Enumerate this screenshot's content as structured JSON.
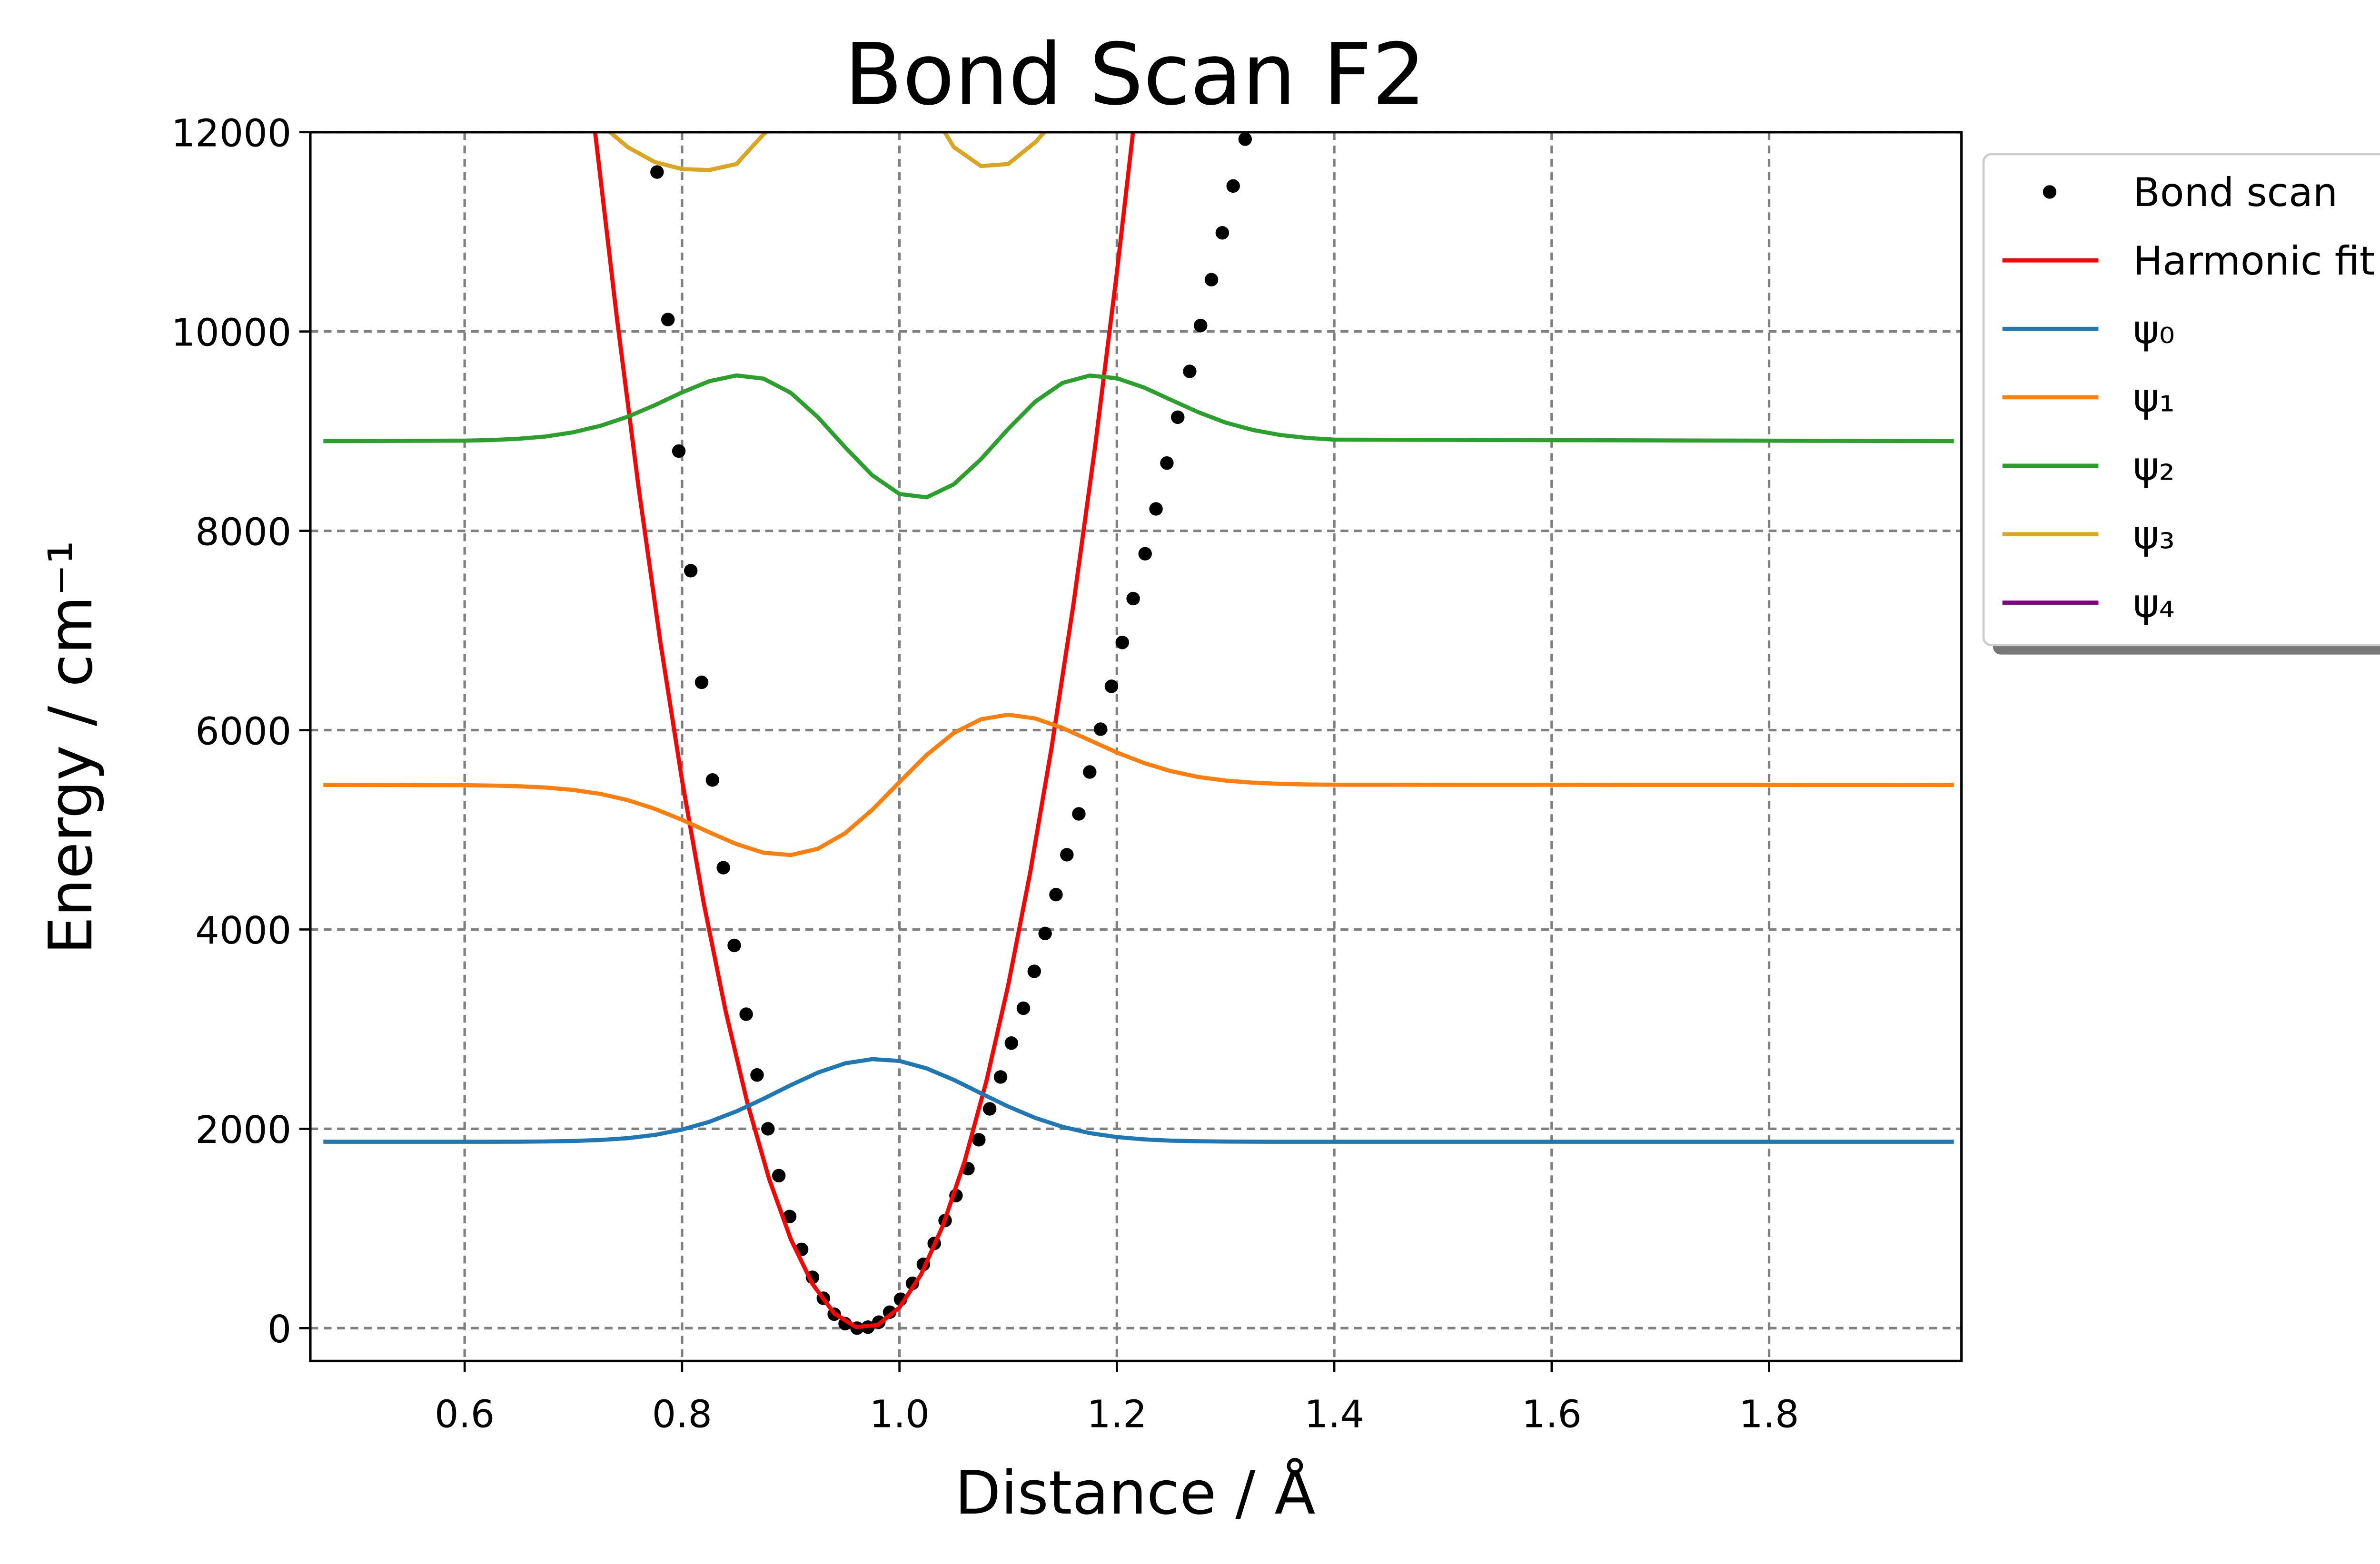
{
  "chart_data": {
    "type": "line",
    "title": "Bond Scan F2",
    "x_label": "Distance / Å",
    "y_label": "Energy / cm⁻¹",
    "xlim": [
      0.458,
      1.977
    ],
    "ylim": [
      -330,
      12000
    ],
    "xticks": [
      0.6,
      0.8,
      {
        "value": 1,
        "label": "1.0"
      },
      1.2,
      1.4,
      1.6,
      1.8
    ],
    "yticks": [
      0,
      2000,
      4000,
      6000,
      8000,
      10000,
      12000
    ],
    "grid": true,
    "legend": "outside-upper-right",
    "series": [
      {
        "name": "Bond scan",
        "type": "scatter",
        "color": "#000000",
        "x": [
          0.777,
          0.787,
          0.797,
          0.808,
          0.818,
          0.828,
          0.838,
          0.848,
          0.859,
          0.869,
          0.879,
          0.889,
          0.899,
          0.91,
          0.92,
          0.93,
          0.94,
          0.95,
          0.961,
          0.971,
          0.981,
          0.991,
          1.001,
          1.012,
          1.022,
          1.032,
          1.042,
          1.052,
          1.063,
          1.073,
          1.083,
          1.093,
          1.103,
          1.114,
          1.124,
          1.134,
          1.144,
          1.154,
          1.165,
          1.175,
          1.185,
          1.195,
          1.205,
          1.215,
          1.226,
          1.236,
          1.246,
          1.256,
          1.267,
          1.277,
          1.287,
          1.297,
          1.307,
          1.318
        ],
        "values": [
          11600,
          10120,
          8800,
          7600,
          6480,
          5500,
          4620,
          3840,
          3150,
          2540,
          2000,
          1530,
          1120,
          790,
          510,
          300,
          140,
          45,
          0,
          10,
          60,
          160,
          290,
          450,
          640,
          850,
          1080,
          1330,
          1600,
          1890,
          2200,
          2520,
          2860,
          3210,
          3580,
          3960,
          4350,
          4750,
          5160,
          5580,
          6010,
          6440,
          6880,
          7320,
          7770,
          8220,
          8680,
          9140,
          9600,
          10060,
          10520,
          10990,
          11460,
          11930
        ]
      },
      {
        "name": "Harmonic fit",
        "type": "line",
        "color": "#ff0000",
        "x": [
          0.7,
          0.72,
          0.74,
          0.76,
          0.78,
          0.8,
          0.82,
          0.84,
          0.86,
          0.88,
          0.9,
          0.92,
          0.94,
          0.96,
          0.98,
          1.0,
          1.02,
          1.04,
          1.06,
          1.08,
          1.1,
          1.12,
          1.14,
          1.16,
          1.18,
          1.2,
          1.22,
          1.24
        ],
        "values": [
          14018,
          12000,
          10139,
          8435,
          6887,
          5496,
          4262,
          3185,
          2264,
          1500,
          893,
          442,
          148,
          11,
          31,
          207,
          540,
          1030,
          1676,
          2479,
          3439,
          4556,
          5829,
          7259,
          8846,
          10590,
          12490,
          14547
        ]
      },
      {
        "name": "ψ₀",
        "type": "line",
        "color": "#1f77b4",
        "x": [
          0.47,
          0.6,
          0.625,
          0.65,
          0.675,
          0.7,
          0.725,
          0.75,
          0.775,
          0.8,
          0.825,
          0.85,
          0.875,
          0.9,
          0.925,
          0.95,
          0.975,
          1.0,
          1.025,
          1.05,
          1.075,
          1.1,
          1.125,
          1.15,
          1.175,
          1.2,
          1.225,
          1.25,
          1.275,
          1.3,
          1.325,
          1.35,
          1.375,
          1.4,
          1.97
        ],
        "values": [
          1870,
          1870,
          1870,
          1871,
          1873,
          1878,
          1888,
          1906,
          1939,
          1992,
          2070,
          2175,
          2302,
          2438,
          2564,
          2657,
          2699,
          2681,
          2606,
          2491,
          2356,
          2224,
          2109,
          2020,
          1957,
          1917,
          1894,
          1881,
          1875,
          1872,
          1871,
          1870,
          1870,
          1870,
          1870
        ]
      },
      {
        "name": "ψ₁",
        "type": "line",
        "color": "#ff7f0e",
        "x": [
          0.47,
          0.6,
          0.625,
          0.65,
          0.675,
          0.7,
          0.725,
          0.75,
          0.775,
          0.8,
          0.825,
          0.85,
          0.875,
          0.9,
          0.925,
          0.95,
          0.975,
          1.0,
          1.025,
          1.05,
          1.075,
          1.1,
          1.125,
          1.15,
          1.175,
          1.2,
          1.225,
          1.25,
          1.275,
          1.3,
          1.325,
          1.35,
          1.375,
          1.4,
          1.97
        ],
        "values": [
          5450,
          5448,
          5444,
          5437,
          5424,
          5400,
          5360,
          5298,
          5210,
          5100,
          4975,
          4857,
          4770,
          4747,
          4810,
          4966,
          5201,
          5478,
          5751,
          5972,
          6109,
          6155,
          6117,
          6022,
          5899,
          5776,
          5670,
          5588,
          5530,
          5494,
          5473,
          5461,
          5455,
          5452,
          5450
        ]
      },
      {
        "name": "ψ₂",
        "type": "line",
        "color": "#2ca02c",
        "x": [
          0.47,
          0.6,
          0.625,
          0.65,
          0.675,
          0.7,
          0.725,
          0.75,
          0.775,
          0.8,
          0.825,
          0.85,
          0.875,
          0.9,
          0.925,
          0.95,
          0.975,
          1.0,
          1.025,
          1.05,
          1.075,
          1.1,
          1.125,
          1.15,
          1.175,
          1.2,
          1.225,
          1.25,
          1.275,
          1.3,
          1.325,
          1.35,
          1.375,
          1.4,
          1.97
        ],
        "values": [
          8900,
          8905,
          8911,
          8924,
          8947,
          8989,
          9054,
          9145,
          9261,
          9389,
          9501,
          9559,
          9527,
          9385,
          9140,
          8839,
          8557,
          8370,
          8336,
          8467,
          8719,
          9022,
          9297,
          9484,
          9558,
          9531,
          9438,
          9313,
          9190,
          9086,
          9012,
          8962,
          8932,
          8915,
          8900
        ]
      },
      {
        "name": "ψ₃",
        "type": "line",
        "color": "#daa520",
        "x": [
          0.47,
          0.6,
          0.625,
          0.65,
          0.675,
          0.7,
          0.725,
          0.75,
          0.775,
          0.8,
          0.825,
          0.85,
          0.875,
          0.9,
          0.925,
          0.95,
          0.975,
          1.0,
          1.025,
          1.05,
          1.075,
          1.1,
          1.125,
          1.15,
          1.175,
          1.2,
          1.225,
          1.25,
          1.275,
          1.3,
          1.325,
          1.35,
          1.375,
          1.4,
          1.97
        ],
        "values": [
          12360,
          12360,
          12370,
          12390,
          12400,
          12300,
          12080,
          11850,
          11700,
          11630,
          11620,
          11680,
          11980,
          12200,
          12500,
          12700,
          12750,
          12600,
          12300,
          11850,
          11660,
          11680,
          11900,
          12200,
          12550,
          12800,
          12800,
          12650,
          12500,
          12400,
          12360,
          12360,
          12360,
          12360,
          12360
        ]
      },
      {
        "name": "ψ₄",
        "type": "line",
        "color": "#800080",
        "x": [
          0.47,
          0.6,
          0.625,
          0.65,
          0.675,
          0.7,
          0.725,
          0.75,
          0.775,
          0.8,
          0.825,
          0.85,
          0.875,
          0.9,
          0.925,
          0.95,
          0.975,
          1.0,
          1.025,
          1.05,
          1.075,
          1.1,
          1.125,
          1.15,
          1.175,
          1.2,
          1.225,
          1.25,
          1.275,
          1.3,
          1.325,
          1.35,
          1.375,
          1.4,
          1.97
        ],
        "values": [
          null,
          null,
          null,
          null,
          null,
          null,
          null,
          null,
          null,
          null,
          null,
          null,
          null,
          null,
          null,
          null,
          null,
          null,
          null,
          null,
          null,
          null,
          null,
          null,
          null,
          null,
          null,
          null,
          null,
          null,
          null,
          null,
          null,
          null,
          null
        ]
      }
    ]
  }
}
